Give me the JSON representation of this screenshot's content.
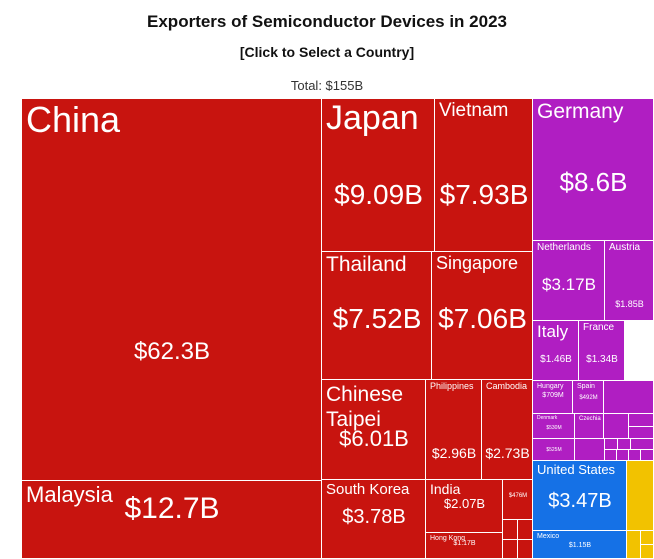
{
  "header": {
    "title": "Exporters of Semiconductor Devices in 2023",
    "subtitle": "[Click to Select a Country]",
    "total": "Total: $155B"
  },
  "chart_data": {
    "type": "treemap",
    "unit": "USD",
    "total_label": "$155B",
    "colors": {
      "asia": "#c8140f",
      "europe": "#b01ec2",
      "north_america": "#1571e6",
      "other": "#f2c200"
    },
    "items": [
      {
        "name": "China",
        "value_label": "$62.3B",
        "value": 62.3,
        "region": "asia"
      },
      {
        "name": "Malaysia",
        "value_label": "$12.7B",
        "value": 12.7,
        "region": "asia"
      },
      {
        "name": "Japan",
        "value_label": "$9.09B",
        "value": 9.09,
        "region": "asia"
      },
      {
        "name": "Vietnam",
        "value_label": "$7.93B",
        "value": 7.93,
        "region": "asia"
      },
      {
        "name": "Thailand",
        "value_label": "$7.52B",
        "value": 7.52,
        "region": "asia"
      },
      {
        "name": "Singapore",
        "value_label": "$7.06B",
        "value": 7.06,
        "region": "asia"
      },
      {
        "name": "Chinese Taipei",
        "value_label": "$6.01B",
        "value": 6.01,
        "region": "asia"
      },
      {
        "name": "Philippines",
        "value_label": "$2.96B",
        "value": 2.96,
        "region": "asia"
      },
      {
        "name": "Cambodia",
        "value_label": "$2.73B",
        "value": 2.73,
        "region": "asia"
      },
      {
        "name": "South Korea",
        "value_label": "$3.78B",
        "value": 3.78,
        "region": "asia"
      },
      {
        "name": "India",
        "value_label": "$2.07B",
        "value": 2.07,
        "region": "asia"
      },
      {
        "name": "Hong Kong",
        "value_label": "$1.17B",
        "value": 1.17,
        "region": "asia"
      },
      {
        "name": "",
        "value_label": "$476M",
        "value": 0.476,
        "region": "asia"
      },
      {
        "name": "Germany",
        "value_label": "$8.6B",
        "value": 8.6,
        "region": "europe"
      },
      {
        "name": "Netherlands",
        "value_label": "$3.17B",
        "value": 3.17,
        "region": "europe"
      },
      {
        "name": "Austria",
        "value_label": "$1.85B",
        "value": 1.85,
        "region": "europe"
      },
      {
        "name": "Italy",
        "value_label": "$1.46B",
        "value": 1.46,
        "region": "europe"
      },
      {
        "name": "France",
        "value_label": "$1.34B",
        "value": 1.34,
        "region": "europe"
      },
      {
        "name": "Hungary",
        "value_label": "$709M",
        "value": 0.709,
        "region": "europe"
      },
      {
        "name": "Spain",
        "value_label": "$492M",
        "value": 0.492,
        "region": "europe"
      },
      {
        "name": "Denmark",
        "value_label": "$530M",
        "value": 0.53,
        "region": "europe"
      },
      {
        "name": "Czechia",
        "value_label": "",
        "value": null,
        "region": "europe"
      },
      {
        "name": "",
        "value_label": "$525M",
        "value": 0.525,
        "region": "europe"
      },
      {
        "name": "United States",
        "value_label": "$3.47B",
        "value": 3.47,
        "region": "north_america"
      },
      {
        "name": "Mexico",
        "value_label": "$1.15B",
        "value": 1.15,
        "region": "north_america"
      }
    ]
  }
}
